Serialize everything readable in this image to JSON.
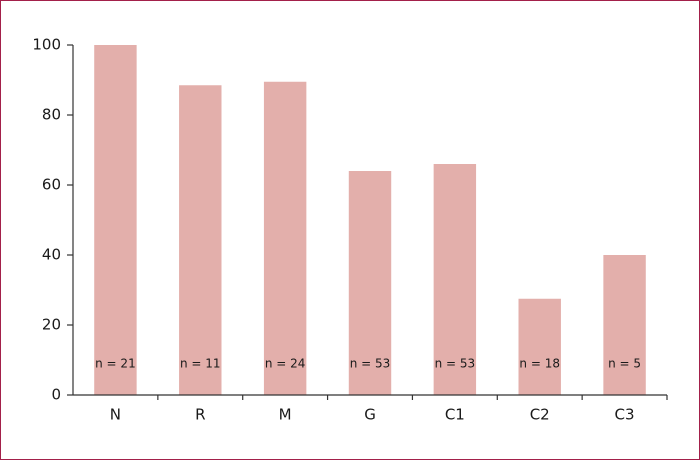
{
  "chart_data": {
    "type": "bar",
    "categories": [
      "N",
      "R",
      "M",
      "G",
      "C1",
      "C2",
      "C3"
    ],
    "values": [
      100,
      88.5,
      89.5,
      64,
      66,
      27.5,
      40
    ],
    "bar_labels": [
      "n = 21",
      "n = 11",
      "n = 24",
      "n = 53",
      "n = 53",
      "n = 18",
      "n = 5"
    ],
    "color": "#e3afab",
    "ylim": [
      0,
      100
    ],
    "yticks": [
      0,
      20,
      40,
      60,
      80,
      100
    ],
    "grid": false
  }
}
